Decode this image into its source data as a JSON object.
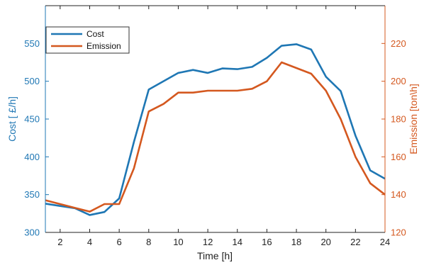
{
  "chart_data": {
    "type": "line",
    "xlabel": "Time [h]",
    "ylabel_left": "Cost [ £/h]",
    "ylabel_right": "Emission [ton\\h]",
    "xlim": [
      1,
      24
    ],
    "x_ticks": [
      2,
      4,
      6,
      8,
      10,
      12,
      14,
      16,
      18,
      20,
      22,
      24
    ],
    "ylim_left": [
      300,
      600
    ],
    "ylim_right": [
      120,
      240
    ],
    "y_ticks_left": [
      300,
      350,
      400,
      450,
      500,
      550
    ],
    "y_ticks_right": [
      120,
      140,
      160,
      180,
      200,
      220
    ],
    "legend_position": "top-left",
    "x": [
      1,
      2,
      3,
      4,
      5,
      6,
      7,
      8,
      9,
      10,
      11,
      12,
      13,
      14,
      15,
      16,
      17,
      18,
      19,
      20,
      21,
      22,
      23,
      24
    ],
    "series": [
      {
        "name": "Cost",
        "axis": "left",
        "color": "#1f77b4",
        "values": [
          338,
          335,
          332,
          323,
          327,
          345,
          420,
          489,
          500,
          511,
          515,
          511,
          517,
          516,
          519,
          531,
          547,
          549,
          542,
          506,
          487,
          428,
          382,
          371
        ]
      },
      {
        "name": "Emission",
        "axis": "right",
        "color": "#d4581f",
        "values": [
          137,
          135,
          133,
          131,
          135,
          135,
          154,
          184,
          188,
          194,
          194,
          195,
          195,
          195,
          196,
          200,
          210,
          207,
          204,
          195,
          180,
          160,
          146,
          140
        ]
      }
    ]
  }
}
